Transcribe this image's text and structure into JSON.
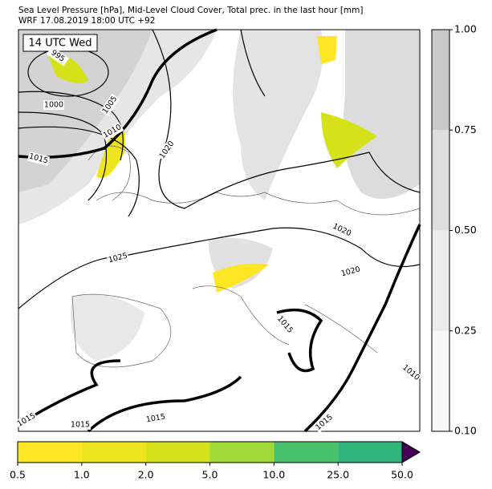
{
  "header": {
    "line1": "Sea Level Pressure [hPa], Mid-Level Cloud Cover, Total prec. in the last hour [mm]",
    "line2": "WRF 17.08.2019 18:00 UTC +92"
  },
  "time_label": "14 UTC Wed",
  "isobar_labels": [
    "995",
    "1000",
    "1005",
    "1010",
    "1015",
    "1020",
    "1025",
    "1020",
    "1020",
    "1015",
    "1015",
    "1015",
    "1015",
    "1010",
    "1015"
  ],
  "cloud_colorbar": {
    "ticks": [
      "0.10",
      "0.25",
      "0.50",
      "0.75",
      "1.00"
    ],
    "colors": [
      "#f7f7f7",
      "#ececec",
      "#dedede",
      "#c9c9c9"
    ]
  },
  "precip_colorbar": {
    "ticks": [
      "0.5",
      "1.0",
      "2.0",
      "5.0",
      "10.0",
      "25.0",
      "50.0"
    ],
    "colors": [
      "#fde725",
      "#efe51c",
      "#d5e21a",
      "#a0da39",
      "#4ac16d",
      "#2fb47c",
      "#3e4989",
      "#440154"
    ]
  }
}
